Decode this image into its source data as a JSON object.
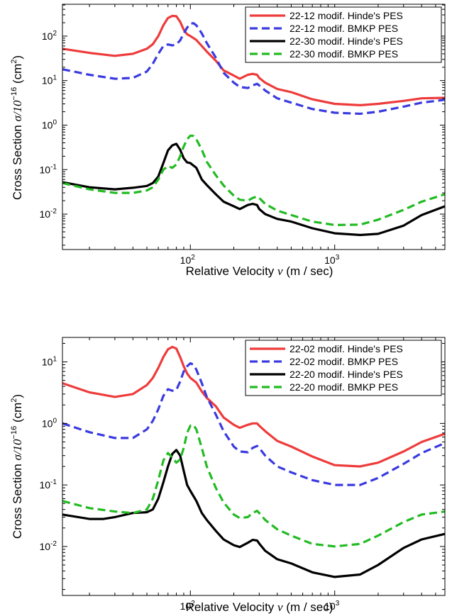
{
  "chart_data": [
    {
      "type": "line",
      "yscale": "log",
      "xscale": "log",
      "xlim": [
        13,
        5800
      ],
      "ylim": [
        0.0016,
        520
      ],
      "grid": false,
      "legend_position": "top-right",
      "xlabel": {
        "text": "Relative Velocity",
        "symbol": "v",
        "unit": "(m / sec)"
      },
      "ylabel": {
        "text": "Cross Section",
        "symbol": "σ/10",
        "exponent": "−16",
        "unit_open": "(cm",
        "unit_power": "2",
        "unit_close": ")"
      },
      "x_ticks": [
        {
          "value": 100,
          "base": "10",
          "exp": "2"
        },
        {
          "value": 1000,
          "base": "10",
          "exp": "3"
        }
      ],
      "y_ticks": [
        {
          "value": 0.01,
          "base": "10",
          "exp": "-2"
        },
        {
          "value": 0.1,
          "base": "10",
          "exp": "-1"
        },
        {
          "value": 1,
          "base": "10",
          "exp": "0"
        },
        {
          "value": 10,
          "base": "10",
          "exp": "1"
        },
        {
          "value": 100,
          "base": "10",
          "exp": "2"
        }
      ],
      "series": [
        {
          "name": "22-12 modif. Hinde's PES",
          "color": "#ee3b3b",
          "dash": false,
          "x": [
            13,
            20,
            30,
            40,
            50,
            55,
            60,
            65,
            70,
            75,
            80,
            85,
            90,
            95,
            100,
            110,
            120,
            130,
            150,
            170,
            200,
            220,
            250,
            270,
            290,
            300,
            330,
            400,
            500,
            700,
            1000,
            1500,
            2000,
            3000,
            4000,
            5800
          ],
          "y": [
            52,
            42,
            36,
            40,
            52,
            66,
            100,
            175,
            255,
            285,
            280,
            210,
            140,
            110,
            100,
            82,
            60,
            45,
            28,
            17,
            13,
            11,
            13.5,
            14.2,
            13.5,
            11.5,
            9,
            6.5,
            5.5,
            3.8,
            3,
            2.8,
            3,
            3.5,
            4,
            4.1
          ]
        },
        {
          "name": "22-12 modif. BMKP PES",
          "color": "#3a3ae0",
          "dash": true,
          "x": [
            13,
            20,
            30,
            40,
            50,
            55,
            60,
            65,
            70,
            75,
            80,
            85,
            90,
            95,
            100,
            105,
            110,
            120,
            130,
            150,
            170,
            200,
            220,
            250,
            270,
            290,
            300,
            330,
            400,
            500,
            700,
            1000,
            1500,
            2000,
            3000,
            4000,
            5800
          ],
          "y": [
            18,
            13.5,
            11,
            11.5,
            16,
            24,
            40,
            60,
            65,
            62,
            65,
            80,
            115,
            155,
            190,
            195,
            175,
            115,
            70,
            33,
            15,
            9,
            7.2,
            6.8,
            7.8,
            8.5,
            7.8,
            6,
            4,
            3.2,
            2.3,
            1.9,
            1.8,
            2,
            2.6,
            3.2,
            3.7
          ]
        },
        {
          "name": "22-30 modif. Hinde's PES",
          "color": "#000000",
          "dash": false,
          "x": [
            13,
            20,
            30,
            40,
            50,
            55,
            60,
            65,
            70,
            75,
            80,
            85,
            90,
            95,
            100,
            110,
            120,
            130,
            150,
            170,
            200,
            220,
            250,
            270,
            290,
            300,
            330,
            400,
            500,
            700,
            1000,
            1500,
            2000,
            3000,
            4000,
            5800
          ],
          "y": [
            0.052,
            0.04,
            0.036,
            0.039,
            0.043,
            0.05,
            0.07,
            0.14,
            0.27,
            0.35,
            0.38,
            0.28,
            0.18,
            0.145,
            0.14,
            0.11,
            0.06,
            0.045,
            0.028,
            0.019,
            0.015,
            0.013,
            0.016,
            0.017,
            0.016,
            0.013,
            0.01,
            0.0078,
            0.0068,
            0.0048,
            0.0037,
            0.0034,
            0.0036,
            0.0055,
            0.0095,
            0.015
          ]
        },
        {
          "name": "22-30 modif. BMKP PES",
          "color": "#22bb22",
          "dash": true,
          "x": [
            13,
            20,
            30,
            40,
            50,
            55,
            60,
            65,
            70,
            75,
            80,
            85,
            90,
            95,
            100,
            105,
            110,
            120,
            130,
            150,
            170,
            200,
            220,
            250,
            270,
            290,
            300,
            330,
            400,
            500,
            700,
            1000,
            1500,
            2000,
            3000,
            4000,
            5800
          ],
          "y": [
            0.05,
            0.036,
            0.03,
            0.03,
            0.034,
            0.04,
            0.06,
            0.1,
            0.12,
            0.11,
            0.13,
            0.2,
            0.33,
            0.48,
            0.58,
            0.57,
            0.48,
            0.28,
            0.15,
            0.075,
            0.044,
            0.026,
            0.021,
            0.02,
            0.023,
            0.025,
            0.023,
            0.017,
            0.012,
            0.0095,
            0.0068,
            0.0057,
            0.0058,
            0.0075,
            0.0125,
            0.019,
            0.028
          ]
        }
      ]
    },
    {
      "type": "line",
      "yscale": "log",
      "xscale": "log",
      "xlim": [
        13,
        5800
      ],
      "ylim": [
        0.0016,
        25
      ],
      "grid": false,
      "legend_position": "top-right",
      "xlabel": {
        "text": "Relative Velocity",
        "symbol": "v",
        "unit": "(m / sec)"
      },
      "ylabel": {
        "text": "Cross Section",
        "symbol": "σ/10",
        "exponent": "−16",
        "unit_open": "(cm",
        "unit_power": "2",
        "unit_close": ")"
      },
      "x_ticks": [
        {
          "value": 100,
          "base": "10",
          "exp": "2"
        },
        {
          "value": 1000,
          "base": "10",
          "exp": "3"
        }
      ],
      "y_ticks": [
        {
          "value": 0.01,
          "base": "10",
          "exp": "-2"
        },
        {
          "value": 0.1,
          "base": "10",
          "exp": "-1"
        },
        {
          "value": 1,
          "base": "10",
          "exp": "0"
        },
        {
          "value": 10,
          "base": "10",
          "exp": "1"
        }
      ],
      "series": [
        {
          "name": "22-02 modif. Hinde's PES",
          "color": "#ee3b3b",
          "dash": false,
          "x": [
            13,
            20,
            30,
            40,
            50,
            55,
            60,
            65,
            70,
            75,
            80,
            85,
            90,
            95,
            100,
            110,
            120,
            130,
            150,
            170,
            200,
            220,
            250,
            270,
            290,
            300,
            330,
            400,
            500,
            700,
            1000,
            1500,
            2000,
            3000,
            4000,
            5800
          ],
          "y": [
            4.5,
            3.2,
            2.7,
            3,
            4.2,
            5.5,
            8,
            12,
            16,
            17.5,
            16.5,
            12,
            8.5,
            6.5,
            5.5,
            4.6,
            3.3,
            2.6,
            1.9,
            1.25,
            0.95,
            0.85,
            0.95,
            1.0,
            1.0,
            0.92,
            0.75,
            0.52,
            0.42,
            0.29,
            0.21,
            0.2,
            0.23,
            0.35,
            0.5,
            0.68
          ]
        },
        {
          "name": "22-02 modif. BMKP PES",
          "color": "#3a3ae0",
          "dash": true,
          "x": [
            13,
            20,
            30,
            40,
            50,
            55,
            60,
            65,
            70,
            75,
            80,
            85,
            90,
            95,
            100,
            105,
            110,
            120,
            130,
            150,
            170,
            200,
            220,
            250,
            270,
            290,
            300,
            330,
            400,
            500,
            700,
            1000,
            1500,
            2000,
            3000,
            4000,
            5800
          ],
          "y": [
            1.0,
            0.72,
            0.58,
            0.58,
            0.8,
            1.1,
            1.7,
            2.8,
            3.6,
            3.4,
            3.5,
            4.8,
            7,
            8.5,
            9.5,
            9,
            7.5,
            4.5,
            2.7,
            1.4,
            0.75,
            0.42,
            0.35,
            0.34,
            0.4,
            0.43,
            0.4,
            0.3,
            0.2,
            0.16,
            0.12,
            0.1,
            0.1,
            0.13,
            0.22,
            0.33,
            0.48
          ]
        },
        {
          "name": "22-20 modif. Hinde's PES",
          "color": "#000000",
          "dash": false,
          "x": [
            13,
            20,
            25,
            30,
            40,
            50,
            55,
            60,
            65,
            70,
            75,
            80,
            85,
            90,
            95,
            100,
            110,
            120,
            130,
            150,
            170,
            200,
            220,
            250,
            270,
            290,
            300,
            330,
            400,
            500,
            700,
            1000,
            1500,
            2000,
            3000,
            4000,
            5800
          ],
          "y": [
            0.033,
            0.028,
            0.028,
            0.03,
            0.035,
            0.036,
            0.04,
            0.06,
            0.11,
            0.2,
            0.32,
            0.37,
            0.3,
            0.17,
            0.1,
            0.08,
            0.055,
            0.035,
            0.027,
            0.018,
            0.013,
            0.0105,
            0.0098,
            0.0115,
            0.0128,
            0.0125,
            0.0112,
            0.0085,
            0.0062,
            0.0053,
            0.0038,
            0.0032,
            0.0035,
            0.005,
            0.0095,
            0.013,
            0.016
          ]
        },
        {
          "name": "22-20 modif. BMKP PES",
          "color": "#22bb22",
          "dash": true,
          "x": [
            13,
            20,
            30,
            40,
            50,
            55,
            60,
            65,
            70,
            75,
            80,
            85,
            90,
            95,
            100,
            105,
            110,
            120,
            130,
            150,
            170,
            200,
            220,
            250,
            270,
            290,
            300,
            330,
            400,
            500,
            700,
            1000,
            1500,
            2000,
            3000,
            4000,
            5800
          ],
          "y": [
            0.055,
            0.042,
            0.037,
            0.035,
            0.04,
            0.06,
            0.12,
            0.25,
            0.33,
            0.28,
            0.23,
            0.26,
            0.4,
            0.7,
            0.92,
            0.95,
            0.8,
            0.4,
            0.2,
            0.09,
            0.052,
            0.033,
            0.029,
            0.03,
            0.035,
            0.038,
            0.035,
            0.027,
            0.019,
            0.015,
            0.011,
            0.01,
            0.011,
            0.015,
            0.025,
            0.033,
            0.037
          ]
        }
      ]
    }
  ]
}
